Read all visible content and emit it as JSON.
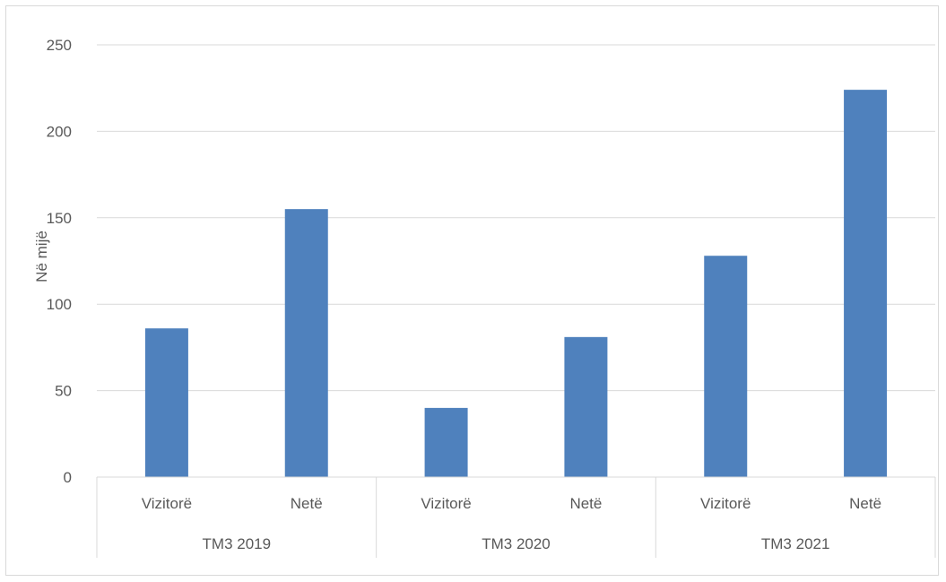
{
  "chart_data": {
    "type": "bar",
    "title": "",
    "ylabel": "Në mijë",
    "ylim": [
      0,
      250
    ],
    "yticks": [
      0,
      50,
      100,
      150,
      200,
      250
    ],
    "grid": true,
    "bar_color": "#4f81bd",
    "groups": [
      {
        "label": "TM3 2019",
        "categories": [
          "Vizitorë",
          "Netë"
        ],
        "values": [
          86,
          155
        ]
      },
      {
        "label": "TM3 2020",
        "categories": [
          "Vizitorë",
          "Netë"
        ],
        "values": [
          40,
          81
        ]
      },
      {
        "label": "TM3 2021",
        "categories": [
          "Vizitorë",
          "Netë"
        ],
        "values": [
          128,
          224
        ]
      }
    ]
  }
}
